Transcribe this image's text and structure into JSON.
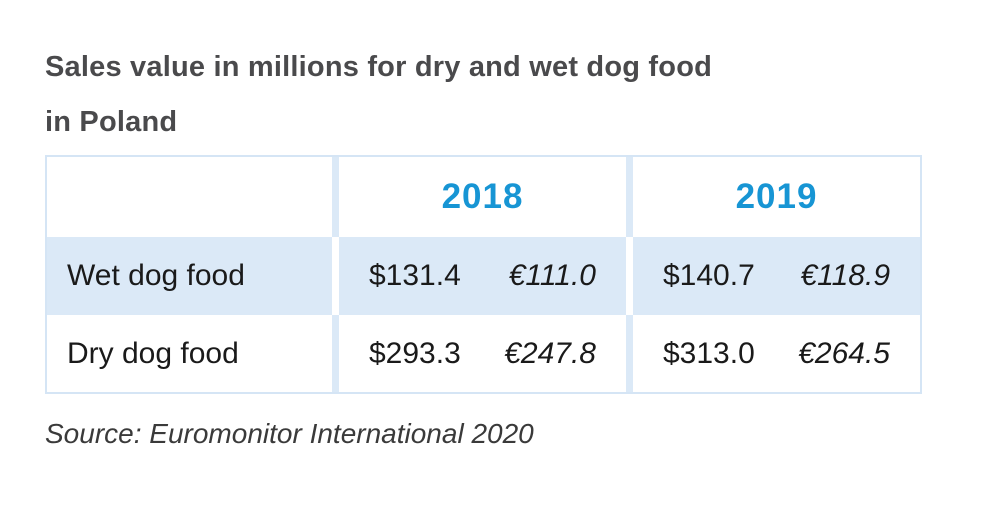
{
  "title": {
    "line1": "Sales value in millions for dry and wet dog food",
    "line2": "in Poland"
  },
  "table": {
    "year_headers": {
      "y2018": "2018",
      "y2019": "2019"
    },
    "rows": {
      "wet": {
        "label": "Wet dog food",
        "v2018_usd": "$131.4",
        "v2018_eur": "€111.0",
        "v2019_usd": "$140.7",
        "v2019_eur": "€118.9"
      },
      "dry": {
        "label": "Dry dog food",
        "v2018_usd": "$293.3",
        "v2018_eur": "€247.8",
        "v2019_usd": "$313.0",
        "v2019_eur": "€264.5"
      }
    }
  },
  "source": {
    "text": "Source: Euromonitor International 2020"
  },
  "colors": {
    "title_text": "#4a4a4c",
    "year_text": "#1795d4",
    "row_highlight_bg": "#dbe9f7",
    "table_border": "#d5e5f5",
    "body_text": "#1a1a1a"
  },
  "chart_data": {
    "type": "table",
    "title": "Sales value in millions for dry and wet dog food in Poland",
    "columns": [
      "",
      "2018",
      "2019"
    ],
    "rows": [
      {
        "category": "Wet dog food",
        "2018": {
          "usd_millions": 131.4,
          "eur_millions": 111.0
        },
        "2019": {
          "usd_millions": 140.7,
          "eur_millions": 118.9
        }
      },
      {
        "category": "Dry dog food",
        "2018": {
          "usd_millions": 293.3,
          "eur_millions": 247.8
        },
        "2019": {
          "usd_millions": 313.0,
          "eur_millions": 264.5
        }
      }
    ],
    "source": "Source: Euromonitor International 2020",
    "notes": "USD values upright, EUR values italic; 2018/2019 headers blue bold; Wet dog food row highlighted light blue"
  }
}
